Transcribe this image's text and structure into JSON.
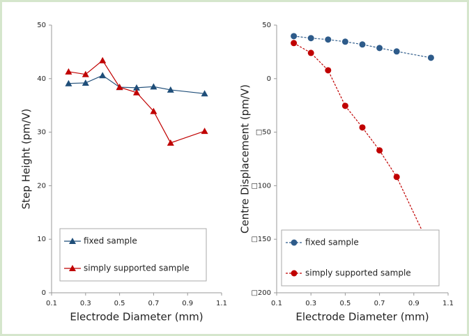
{
  "chart_data": [
    {
      "type": "line",
      "xlabel": "Electrode Diameter (mm)",
      "ylabel": "Step Height (pm/V)",
      "xlim": [
        0.1,
        1.1
      ],
      "xticks": [
        0.1,
        0.3,
        0.5,
        0.7,
        0.9,
        1.1
      ],
      "ylim": [
        0,
        50
      ],
      "yticks": [
        0,
        10,
        20,
        30,
        40,
        50
      ],
      "x": [
        0.2,
        0.3,
        0.4,
        0.5,
        0.6,
        0.7,
        0.8,
        1.0
      ],
      "marker": "triangle",
      "dashed": false,
      "series": [
        {
          "name": "fixed sample",
          "color": "#1f4e79",
          "values": [
            39.1,
            39.2,
            40.6,
            38.4,
            38.3,
            38.5,
            37.9,
            37.2
          ]
        },
        {
          "name": "simply supported sample",
          "color": "#c00000",
          "values": [
            41.3,
            40.8,
            43.4,
            38.4,
            37.4,
            33.9,
            28.0,
            30.2
          ]
        }
      ]
    },
    {
      "type": "line",
      "xlabel": "Electrode Diameter (mm)",
      "ylabel": "Centre Displacement (pm/V)",
      "xlim": [
        0.1,
        1.1
      ],
      "xticks": [
        0.1,
        0.3,
        0.5,
        0.7,
        0.9,
        1.1
      ],
      "ylim": [
        -200,
        50
      ],
      "yticks": [
        50,
        0,
        {
          "value": -50,
          "label": "□50"
        },
        {
          "value": -100,
          "label": "□100"
        },
        {
          "value": -150,
          "label": "□150"
        },
        {
          "value": -200,
          "label": "□200"
        }
      ],
      "x": [
        0.2,
        0.3,
        0.4,
        0.5,
        0.6,
        0.7,
        0.8,
        1.0
      ],
      "marker": "circle",
      "dashed": true,
      "series": [
        {
          "name": "fixed sample",
          "color": "#2e5b8a",
          "values": [
            39.7,
            37.8,
            36.5,
            34.5,
            31.9,
            28.6,
            25.4,
            19.5
          ]
        },
        {
          "name": "simply supported sample",
          "color": "#c00000",
          "values": [
            33.2,
            24.0,
            7.8,
            -25.4,
            -45.6,
            -67.0,
            -91.8,
            -159.5
          ]
        }
      ]
    }
  ]
}
